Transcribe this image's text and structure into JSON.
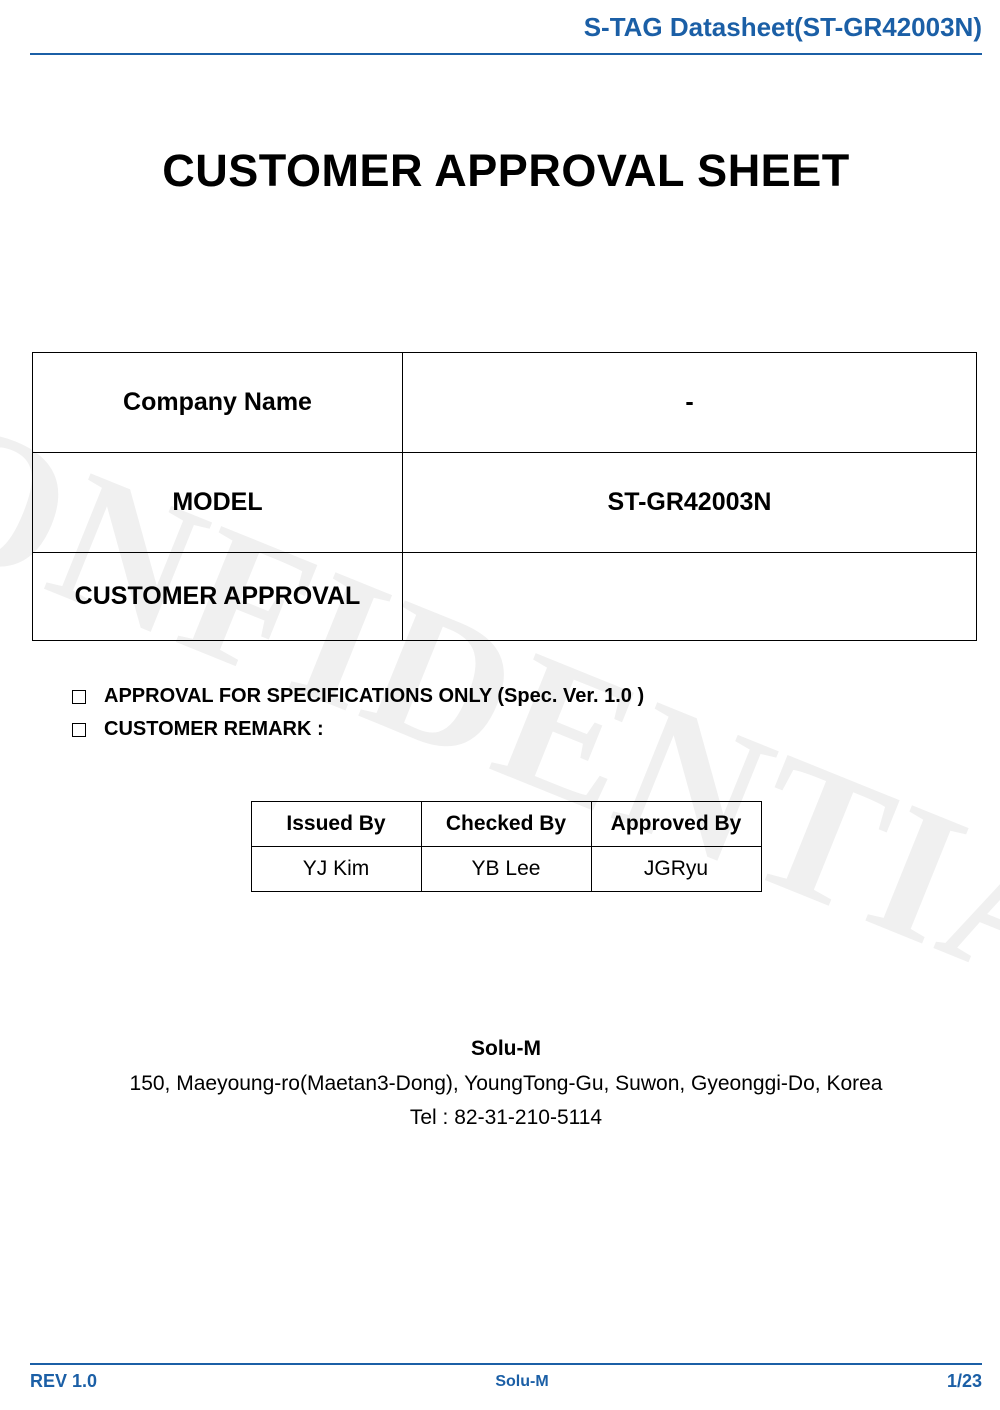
{
  "colors": {
    "brand_blue": "#1b5fa6",
    "text_black": "#000000",
    "watermark_gray": "#f0f0f0",
    "background": "#ffffff"
  },
  "typography": {
    "header_title_fontsize": 26,
    "main_title_fontsize": 45,
    "info_table_fontsize": 25,
    "checkbox_fontsize": 20,
    "sign_table_fontsize": 21,
    "footer_info_fontsize": 21,
    "page_footer_fontsize": 18
  },
  "watermark": "CONFIDENTIAL",
  "header": {
    "title": "S-TAG Datasheet(ST-GR42003N)"
  },
  "main_title": "CUSTOMER APPROVAL SHEET",
  "info_table": {
    "rows": [
      {
        "label": "Company Name",
        "value": "-"
      },
      {
        "label": "MODEL",
        "value": "ST-GR42003N"
      },
      {
        "label": "CUSTOMER APPROVAL",
        "value": ""
      }
    ]
  },
  "checkboxes": {
    "items": [
      "APPROVAL FOR SPECIFICATIONS ONLY (Spec. Ver. 1.0 )",
      "CUSTOMER REMARK :"
    ]
  },
  "sign_table": {
    "headers": [
      "Issued By",
      "Checked By",
      "Approved By"
    ],
    "row": [
      "YJ Kim",
      "YB Lee",
      "JGRyu"
    ]
  },
  "footer_info": {
    "company": "Solu-M",
    "address": "150, Maeyoung-ro(Maetan3-Dong), YoungTong-Gu, Suwon, Gyeonggi-Do, Korea",
    "tel": "Tel : 82-31-210-5114"
  },
  "page_footer": {
    "left": "REV 1.0",
    "center": "Solu-M",
    "right": "1/23"
  }
}
